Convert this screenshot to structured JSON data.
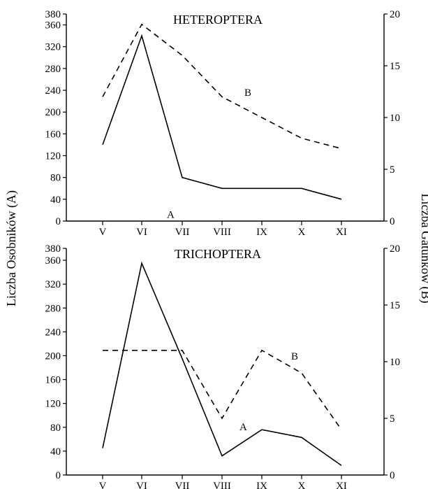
{
  "chart_data": [
    {
      "type": "line",
      "title": "HETEROPTERA",
      "categories": [
        "V",
        "VI",
        "VII",
        "VIII",
        "IX",
        "X",
        "XI"
      ],
      "left_axis": {
        "ylim": [
          0,
          380
        ],
        "ticks": [
          0,
          40,
          80,
          120,
          160,
          200,
          240,
          280,
          320,
          360,
          380
        ]
      },
      "right_axis": {
        "ylim": [
          0,
          20
        ],
        "ticks": [
          0,
          5,
          10,
          15,
          20
        ]
      },
      "series": [
        {
          "name": "A",
          "axis": "left",
          "style": "solid",
          "values": [
            140,
            340,
            80,
            60,
            60,
            60,
            40
          ]
        },
        {
          "name": "B",
          "axis": "right",
          "style": "dashed",
          "values": [
            12,
            19,
            16,
            12,
            10,
            8,
            7
          ]
        }
      ]
    },
    {
      "type": "line",
      "title": "TRICHOPTERA",
      "categories": [
        "V",
        "VI",
        "VII",
        "VIII",
        "IX",
        "X",
        "XI"
      ],
      "left_axis": {
        "ylim": [
          0,
          380
        ],
        "ticks": [
          0,
          40,
          80,
          120,
          160,
          200,
          240,
          280,
          320,
          360,
          380
        ]
      },
      "right_axis": {
        "ylim": [
          0,
          20
        ],
        "ticks": [
          0,
          5,
          10,
          15,
          20
        ]
      },
      "series": [
        {
          "name": "A",
          "axis": "left",
          "style": "solid",
          "values": [
            45,
            355,
            195,
            32,
            76,
            63,
            16
          ]
        },
        {
          "name": "B",
          "axis": "right",
          "style": "dashed",
          "values": [
            11,
            11,
            11,
            5,
            11,
            9,
            4
          ]
        }
      ]
    }
  ],
  "left_axis_title": "Liczba Osobników (A)",
  "right_axis_title": "Liczba Gatunków (B)"
}
